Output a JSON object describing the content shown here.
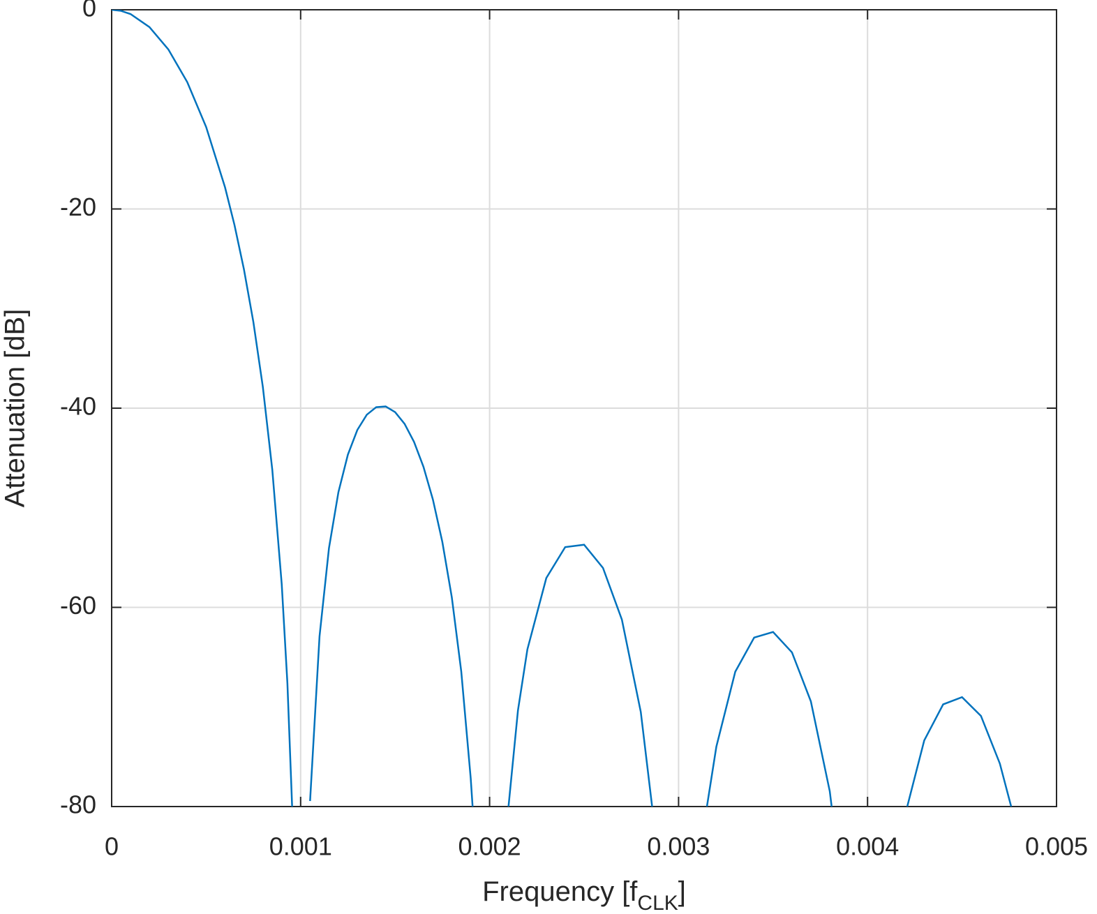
{
  "chart_data": {
    "type": "line",
    "x_label_parts": [
      "Frequency [f",
      "CLK",
      "]"
    ],
    "y_label": "Attenuation [dB]",
    "x": [
      0,
      5e-05,
      0.0001,
      0.0002,
      0.0003,
      0.0004,
      0.0005,
      0.0006,
      0.00065,
      0.0007,
      0.00075,
      0.0008,
      0.00085,
      0.0009,
      0.00093,
      0.000955,
      0.001,
      0.00105,
      0.0011,
      0.00115,
      0.0012,
      0.00125,
      0.0013,
      0.00135,
      0.0014,
      0.00145,
      0.0015,
      0.00155,
      0.0016,
      0.00165,
      0.0017,
      0.00175,
      0.0018,
      0.00185,
      0.0019,
      0.00191,
      0.002,
      0.0021,
      0.00215,
      0.0022,
      0.0023,
      0.0024,
      0.0025,
      0.0026,
      0.0027,
      0.0028,
      0.00286,
      0.003,
      0.00315,
      0.0032,
      0.0033,
      0.0034,
      0.0035,
      0.0036,
      0.0037,
      0.0038,
      0.00381,
      0.004,
      0.00421,
      0.0043,
      0.0044,
      0.0045,
      0.0046,
      0.0047,
      0.00476
    ],
    "series": [
      {
        "color": "#0072bd",
        "values": [
          0,
          -0.11,
          -0.43,
          -1.74,
          -3.98,
          -7.26,
          -11.77,
          -17.83,
          -21.61,
          -26.06,
          -31.36,
          -37.86,
          -46.17,
          -57.68,
          -67.61,
          -80,
          null,
          -79.44,
          -62.91,
          -54.05,
          -48.43,
          -44.67,
          -42.19,
          -40.66,
          -39.9,
          -39.83,
          -40.4,
          -41.57,
          -43.38,
          -45.89,
          -49.18,
          -53.44,
          -58.99,
          -66.44,
          -77.15,
          -80,
          null,
          -80,
          -70.35,
          -64.22,
          -57.06,
          -53.95,
          -53.71,
          -56.04,
          -61.23,
          -70.5,
          -80,
          null,
          -80,
          -73.98,
          -66.46,
          -63.03,
          -62.47,
          -64.52,
          -69.44,
          -78.46,
          -80,
          null,
          -80,
          -73.36,
          -69.74,
          -69.02,
          -70.9,
          -75.68,
          -80
        ]
      }
    ],
    "xlim": [
      0,
      0.005
    ],
    "xticks": [
      0,
      0.001,
      0.002,
      0.003,
      0.004,
      0.005
    ],
    "ylim": [
      -80,
      0
    ],
    "yticks": [
      -80,
      -60,
      -40,
      -20,
      0
    ],
    "grid": true
  }
}
